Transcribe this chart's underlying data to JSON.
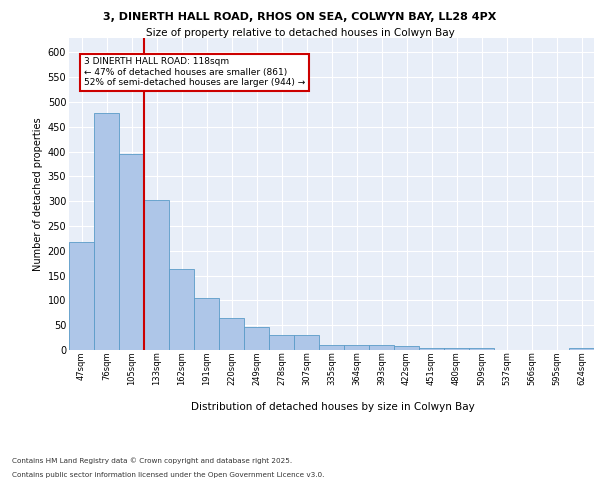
{
  "title_line1": "3, DINERTH HALL ROAD, RHOS ON SEA, COLWYN BAY, LL28 4PX",
  "title_line2": "Size of property relative to detached houses in Colwyn Bay",
  "xlabel": "Distribution of detached houses by size in Colwyn Bay",
  "ylabel": "Number of detached properties",
  "categories": [
    "47sqm",
    "76sqm",
    "105sqm",
    "133sqm",
    "162sqm",
    "191sqm",
    "220sqm",
    "249sqm",
    "278sqm",
    "307sqm",
    "335sqm",
    "364sqm",
    "393sqm",
    "422sqm",
    "451sqm",
    "480sqm",
    "509sqm",
    "537sqm",
    "566sqm",
    "595sqm",
    "624sqm"
  ],
  "values": [
    218,
    478,
    396,
    302,
    163,
    104,
    65,
    47,
    31,
    31,
    10,
    10,
    10,
    9,
    5,
    5,
    5,
    1,
    1,
    1,
    5
  ],
  "bar_color": "#aec6e8",
  "bar_edge_color": "#5a9bc8",
  "bg_color": "#e8eef8",
  "grid_color": "#ffffff",
  "vline_color": "#cc0000",
  "annotation_text": "3 DINERTH HALL ROAD: 118sqm\n← 47% of detached houses are smaller (861)\n52% of semi-detached houses are larger (944) →",
  "annotation_box_color": "#cc0000",
  "footer_line1": "Contains HM Land Registry data © Crown copyright and database right 2025.",
  "footer_line2": "Contains public sector information licensed under the Open Government Licence v3.0.",
  "ylim": [
    0,
    630
  ],
  "yticks": [
    0,
    50,
    100,
    150,
    200,
    250,
    300,
    350,
    400,
    450,
    500,
    550,
    600
  ]
}
